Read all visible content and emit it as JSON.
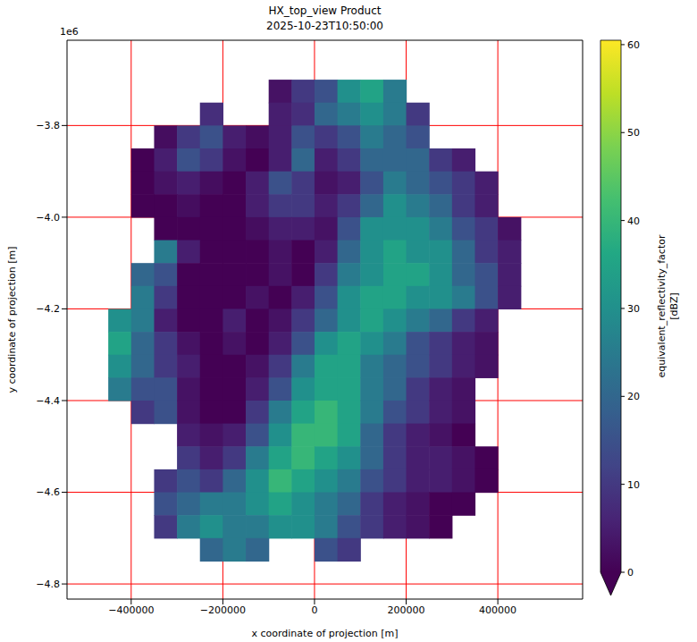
{
  "chart_data": {
    "type": "heatmap",
    "title": "HX_top_view Product",
    "subtitle": "2025-10-23T10:50:00",
    "x_label": "x coordinate of projection [m]",
    "y_label": "y coordinate of projection [m]",
    "x": [
      -475000,
      -425000,
      -375000,
      -325000,
      -275000,
      -225000,
      -175000,
      -125000,
      -75000,
      -25000,
      25000,
      75000,
      125000,
      175000,
      225000,
      275000,
      325000,
      375000,
      425000
    ],
    "y": [
      -3725000,
      -3775000,
      -3825000,
      -3875000,
      -3925000,
      -3975000,
      -4025000,
      -4075000,
      -4125000,
      -4175000,
      -4225000,
      -4275000,
      -4325000,
      -4375000,
      -4425000,
      -4475000,
      -4525000,
      -4575000,
      -4625000,
      -4675000,
      -4725000
    ],
    "cells": [
      [
        null,
        null,
        null,
        null,
        null,
        null,
        null,
        null,
        3,
        10,
        15,
        30,
        35,
        25,
        null,
        null,
        null,
        null,
        null
      ],
      [
        null,
        null,
        null,
        null,
        null,
        8,
        null,
        null,
        5,
        8,
        20,
        25,
        30,
        25,
        10,
        null,
        null,
        null,
        null
      ],
      [
        null,
        null,
        null,
        2,
        10,
        15,
        5,
        2,
        5,
        15,
        10,
        15,
        25,
        20,
        15,
        null,
        null,
        null,
        null
      ],
      [
        null,
        null,
        0,
        5,
        15,
        10,
        3,
        0,
        5,
        20,
        5,
        10,
        20,
        20,
        20,
        10,
        5,
        null,
        null
      ],
      [
        null,
        null,
        0,
        3,
        5,
        2,
        0,
        5,
        15,
        10,
        3,
        5,
        15,
        25,
        20,
        15,
        10,
        5,
        null
      ],
      [
        null,
        null,
        0,
        0,
        2,
        0,
        0,
        5,
        10,
        10,
        5,
        10,
        20,
        30,
        25,
        20,
        10,
        5,
        null
      ],
      [
        null,
        null,
        null,
        0,
        0,
        0,
        0,
        2,
        5,
        5,
        3,
        15,
        30,
        30,
        30,
        25,
        15,
        10,
        3
      ],
      [
        null,
        null,
        null,
        25,
        5,
        0,
        0,
        0,
        3,
        0,
        5,
        20,
        30,
        35,
        30,
        30,
        20,
        10,
        5
      ],
      [
        null,
        null,
        20,
        15,
        0,
        0,
        0,
        0,
        3,
        0,
        10,
        25,
        30,
        35,
        35,
        30,
        20,
        15,
        5
      ],
      [
        null,
        null,
        25,
        10,
        0,
        0,
        0,
        3,
        0,
        5,
        15,
        30,
        35,
        35,
        30,
        30,
        25,
        15,
        5
      ],
      [
        null,
        30,
        25,
        5,
        0,
        0,
        5,
        0,
        3,
        10,
        20,
        30,
        35,
        30,
        25,
        20,
        10,
        5,
        null
      ],
      [
        null,
        35,
        20,
        10,
        3,
        0,
        3,
        0,
        5,
        15,
        30,
        35,
        30,
        25,
        15,
        10,
        5,
        3,
        null
      ],
      [
        null,
        30,
        20,
        10,
        5,
        0,
        0,
        3,
        10,
        25,
        35,
        35,
        25,
        20,
        15,
        10,
        5,
        3,
        null
      ],
      [
        null,
        25,
        15,
        15,
        3,
        0,
        0,
        5,
        15,
        30,
        35,
        35,
        25,
        20,
        10,
        5,
        3,
        null,
        null
      ],
      [
        null,
        null,
        10,
        15,
        3,
        0,
        0,
        10,
        25,
        35,
        40,
        35,
        25,
        15,
        10,
        5,
        3,
        null,
        null
      ],
      [
        null,
        null,
        null,
        null,
        5,
        3,
        5,
        15,
        30,
        40,
        40,
        35,
        20,
        10,
        5,
        3,
        0,
        null,
        null
      ],
      [
        null,
        null,
        null,
        null,
        10,
        5,
        10,
        25,
        35,
        40,
        35,
        30,
        20,
        10,
        5,
        5,
        3,
        0,
        null
      ],
      [
        null,
        null,
        null,
        10,
        15,
        10,
        20,
        30,
        40,
        35,
        30,
        25,
        15,
        10,
        5,
        5,
        3,
        0,
        null
      ],
      [
        null,
        null,
        null,
        15,
        20,
        25,
        25,
        30,
        35,
        30,
        25,
        20,
        10,
        5,
        3,
        0,
        0,
        null,
        null
      ],
      [
        null,
        null,
        null,
        10,
        25,
        30,
        25,
        25,
        30,
        30,
        25,
        15,
        10,
        5,
        3,
        0,
        null,
        null,
        null
      ],
      [
        null,
        null,
        null,
        null,
        null,
        20,
        25,
        20,
        null,
        null,
        15,
        10,
        null,
        null,
        null,
        null,
        null,
        null,
        null
      ]
    ],
    "xlim": [
      -540000,
      585000
    ],
    "ylim": [
      -4833000,
      -3614000
    ],
    "xticks": [
      {
        "value": -400000,
        "label": "−400000"
      },
      {
        "value": -200000,
        "label": "−200000"
      },
      0,
      200000,
      400000
    ],
    "yticks": [
      {
        "value": -4800000,
        "label": "−4.8"
      },
      {
        "value": -4600000,
        "label": "−4.6"
      },
      {
        "value": -4400000,
        "label": "−4.4"
      },
      {
        "value": -4200000,
        "label": "−4.2"
      },
      {
        "value": -4000000,
        "label": "−4.0"
      },
      {
        "value": -3800000,
        "label": "−3.8"
      }
    ],
    "y_offset_label": "1e6",
    "grid": true,
    "colorbar": {
      "label": [
        "equivalent_reflectivity_factor",
        "[dBZ]"
      ],
      "range": [
        0,
        60.5
      ],
      "ticks": [
        0,
        10,
        20,
        30,
        40,
        50,
        60
      ]
    }
  }
}
